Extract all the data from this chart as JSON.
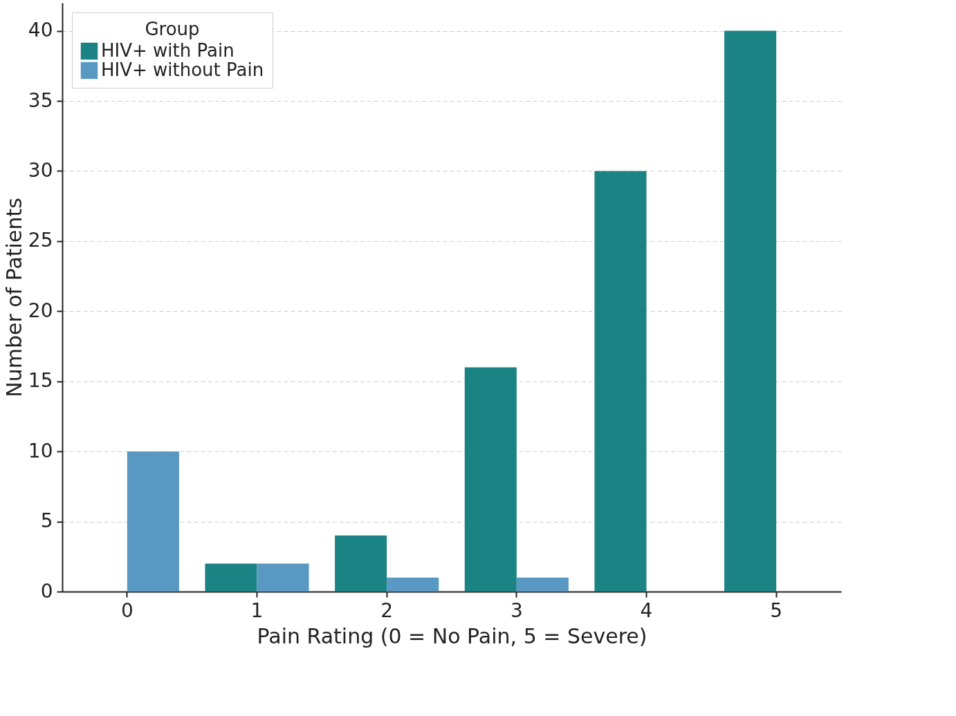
{
  "chart_data": {
    "type": "bar",
    "xlabel": "Pain Rating (0 = No Pain, 5 = Severe)",
    "ylabel": "Number of Patients",
    "legend_title": "Group",
    "categories": [
      "0",
      "1",
      "2",
      "3",
      "4",
      "5"
    ],
    "series": [
      {
        "name": "HIV+ with Pain",
        "color": "#1b8383",
        "values": [
          0,
          2,
          4,
          16,
          30,
          40
        ]
      },
      {
        "name": "HIV+ without Pain",
        "color": "#5a98c4",
        "values": [
          10,
          2,
          1,
          1,
          0,
          0
        ]
      }
    ],
    "ylim": [
      0,
      42
    ],
    "yticks": [
      0,
      5,
      10,
      15,
      20,
      25,
      30,
      35,
      40
    ],
    "grid": "y",
    "legend": "top left"
  }
}
